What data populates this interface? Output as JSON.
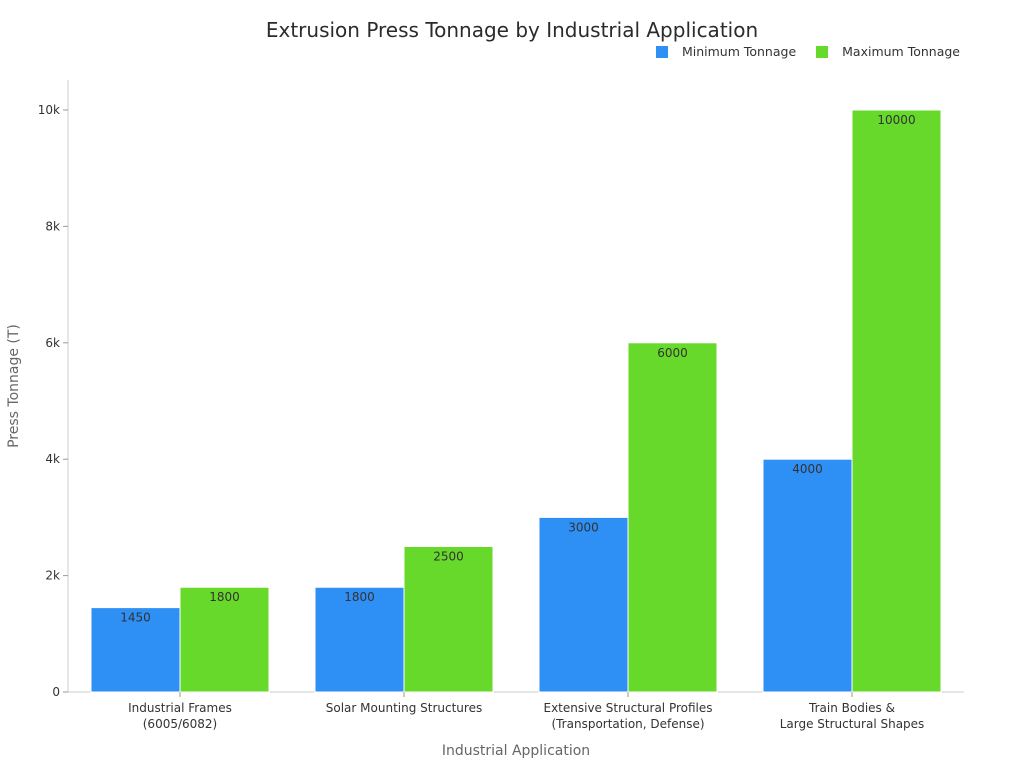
{
  "chart_data": {
    "type": "bar",
    "title": "Extrusion Press Tonnage by Industrial Application",
    "xlabel": "Industrial Application",
    "ylabel": "Press Tonnage (T)",
    "ylim": [
      0,
      10500
    ],
    "yticks": [
      0,
      2000,
      4000,
      6000,
      8000,
      10000
    ],
    "ytick_labels": [
      "0",
      "2k",
      "4k",
      "6k",
      "8k",
      "10k"
    ],
    "grid": false,
    "legend_position": "top-right",
    "categories": [
      [
        "Industrial Frames",
        "(6005/6082)"
      ],
      [
        "Solar Mounting Structures"
      ],
      [
        "Extensive Structural Profiles",
        "(Transportation, Defense)"
      ],
      [
        "Train Bodies &",
        "Large Structural Shapes"
      ]
    ],
    "series": [
      {
        "name": "Minimum Tonnage",
        "color": "#2e8ff5",
        "values": [
          1450,
          1800,
          3000,
          4000
        ]
      },
      {
        "name": "Maximum Tonnage",
        "color": "#66d92a",
        "values": [
          1800,
          2500,
          6000,
          10000
        ]
      }
    ]
  }
}
